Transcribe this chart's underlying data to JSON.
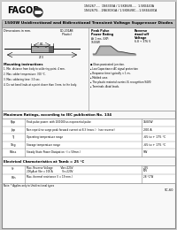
{
  "bg_color": "#ffffff",
  "outer_bg": "#cccccc",
  "header_bg": "#ffffff",
  "title_bar_bg": "#c8c8c8",
  "table_bg": "#ffffff",
  "company": "FAGOR",
  "part_line1": "1N6267.....  1N6303A / 1.5KE6V8.....  1.5KE440A",
  "part_line2": "1N6267G....1N6303GA / 1.5KE6V8C....1.5KE440CA",
  "title": "1500W Unidirectional and Bidirectional Transient Voltage Suppressor Diodes",
  "dim_label": "Dimensions in mm.",
  "package_label": "DO-201AB\n(Plastic)",
  "peak_title": "Peak Pulse\nPower Rating",
  "peak_sub": "At 1 ms. EXP:\n1500W",
  "reverse_title": "Reverse\nstand-off\nVoltage",
  "reverse_sub": "6.8 ÷ 376 V",
  "features": [
    "● Glass passivated junction.",
    "▴ Low Capacitance AC signal protection",
    "▴ Response time typically < 1 ns.",
    "▴ Molded case.",
    "▴ The plastic material carries UL recognition 94V0.",
    "▴ Terminals: Axial leads."
  ],
  "mounting_title": "Mounting instructions",
  "mounting_items": [
    "1. Min. distance from body to soldering point: 4 mm.",
    "2. Max. solder temperature: 300 °C.",
    "3. Max. soldering time: 3.5 sec.",
    "4. Do not bend leads at a point closer than 3 mm. to the body."
  ],
  "sec2_title": "Maximum Ratings, according to IEC publication No. 134",
  "sec2_rows": [
    [
      "Ppp",
      "Peak pulse power: with 10/1000 us exponential pulse",
      "1500W"
    ],
    [
      "Ipp",
      "Non repetitive surge peak forward current at 8.3 (msec.)   (see reverse)",
      "200 A"
    ],
    [
      "Tj",
      "Operating temperature range",
      "-65 to + 175 °C"
    ],
    [
      "Tstg",
      "Storage temperature range",
      "-65 to + 175 °C"
    ],
    [
      "Pdiss",
      "Steady State Power Dissipation  (l = 50mm.)",
      "5W"
    ]
  ],
  "sec3_title": "Electrical Characteristics at Tamb = 25 °C",
  "sec3_rows": [
    [
      "Vr",
      "Max. Reverse Voltage          Vbr=220V\n200μA at Vbr = 100 A            Vr=220V",
      "2.5V\n50V"
    ],
    [
      "Rth",
      "Max. thermal resistance (l = 19 mm.)",
      "28 °C/W"
    ]
  ],
  "footer_note": "Note: * Applies only to Unidirectional types",
  "footer_code": "SC-60"
}
